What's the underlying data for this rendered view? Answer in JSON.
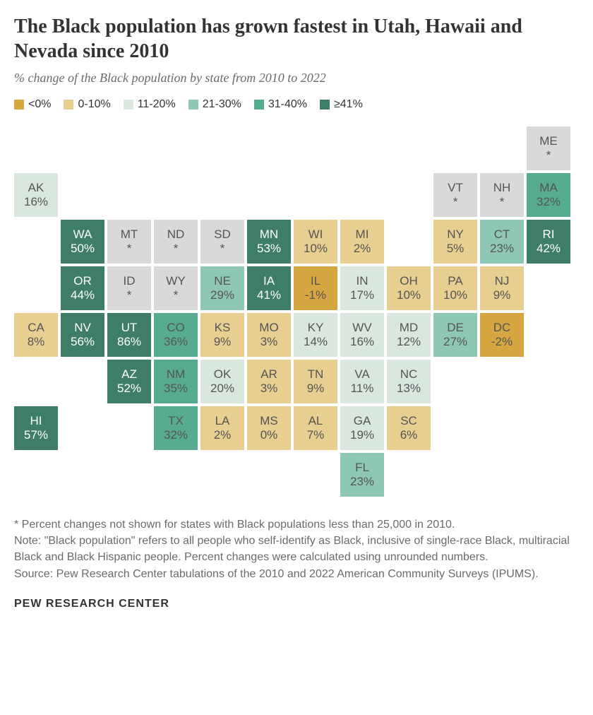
{
  "title": "The Black population has grown fastest in Utah, Hawaii and Nevada since 2010",
  "subtitle": "% change of the Black population by state from 2010 to 2022",
  "colors": {
    "neg": "#d6a740",
    "b0": "#e6cf90",
    "b11": "#d9e7df",
    "b21": "#8fc7b6",
    "b31": "#56ab91",
    "b41": "#3e7e67",
    "na": "#d9d9d9",
    "text": "#555555"
  },
  "legend": [
    {
      "label": "<0%",
      "colorKey": "neg"
    },
    {
      "label": "0-10%",
      "colorKey": "b0"
    },
    {
      "label": "11-20%",
      "colorKey": "b11"
    },
    {
      "label": "21-30%",
      "colorKey": "b21"
    },
    {
      "label": "31-40%",
      "colorKey": "b31"
    },
    {
      "label": "≥41%",
      "colorKey": "b41"
    }
  ],
  "cellFontSize": 17,
  "gridCols": 12,
  "cellSize": 62,
  "cellGap": 4,
  "states": [
    {
      "abbr": "ME",
      "val": "*",
      "row": 1,
      "col": 12,
      "bucket": "na"
    },
    {
      "abbr": "AK",
      "val": "16%",
      "row": 2,
      "col": 1,
      "bucket": "b11"
    },
    {
      "abbr": "VT",
      "val": "*",
      "row": 2,
      "col": 10,
      "bucket": "na"
    },
    {
      "abbr": "NH",
      "val": "*",
      "row": 2,
      "col": 11,
      "bucket": "na"
    },
    {
      "abbr": "MA",
      "val": "32%",
      "row": 2,
      "col": 12,
      "bucket": "b31"
    },
    {
      "abbr": "WA",
      "val": "50%",
      "row": 3,
      "col": 2,
      "bucket": "b41"
    },
    {
      "abbr": "MT",
      "val": "*",
      "row": 3,
      "col": 3,
      "bucket": "na"
    },
    {
      "abbr": "ND",
      "val": "*",
      "row": 3,
      "col": 4,
      "bucket": "na"
    },
    {
      "abbr": "SD",
      "val": "*",
      "row": 3,
      "col": 5,
      "bucket": "na"
    },
    {
      "abbr": "MN",
      "val": "53%",
      "row": 3,
      "col": 6,
      "bucket": "b41"
    },
    {
      "abbr": "WI",
      "val": "10%",
      "row": 3,
      "col": 7,
      "bucket": "b0"
    },
    {
      "abbr": "MI",
      "val": "2%",
      "row": 3,
      "col": 8,
      "bucket": "b0"
    },
    {
      "abbr": "NY",
      "val": "5%",
      "row": 3,
      "col": 10,
      "bucket": "b0"
    },
    {
      "abbr": "CT",
      "val": "23%",
      "row": 3,
      "col": 11,
      "bucket": "b21"
    },
    {
      "abbr": "RI",
      "val": "42%",
      "row": 3,
      "col": 12,
      "bucket": "b41"
    },
    {
      "abbr": "OR",
      "val": "44%",
      "row": 4,
      "col": 2,
      "bucket": "b41"
    },
    {
      "abbr": "ID",
      "val": "*",
      "row": 4,
      "col": 3,
      "bucket": "na"
    },
    {
      "abbr": "WY",
      "val": "*",
      "row": 4,
      "col": 4,
      "bucket": "na"
    },
    {
      "abbr": "NE",
      "val": "29%",
      "row": 4,
      "col": 5,
      "bucket": "b21"
    },
    {
      "abbr": "IA",
      "val": "41%",
      "row": 4,
      "col": 6,
      "bucket": "b41"
    },
    {
      "abbr": "IL",
      "val": "-1%",
      "row": 4,
      "col": 7,
      "bucket": "neg"
    },
    {
      "abbr": "IN",
      "val": "17%",
      "row": 4,
      "col": 8,
      "bucket": "b11"
    },
    {
      "abbr": "OH",
      "val": "10%",
      "row": 4,
      "col": 9,
      "bucket": "b0"
    },
    {
      "abbr": "PA",
      "val": "10%",
      "row": 4,
      "col": 10,
      "bucket": "b0"
    },
    {
      "abbr": "NJ",
      "val": "9%",
      "row": 4,
      "col": 11,
      "bucket": "b0"
    },
    {
      "abbr": "CA",
      "val": "8%",
      "row": 5,
      "col": 1,
      "bucket": "b0"
    },
    {
      "abbr": "NV",
      "val": "56%",
      "row": 5,
      "col": 2,
      "bucket": "b41"
    },
    {
      "abbr": "UT",
      "val": "86%",
      "row": 5,
      "col": 3,
      "bucket": "b41"
    },
    {
      "abbr": "CO",
      "val": "36%",
      "row": 5,
      "col": 4,
      "bucket": "b31"
    },
    {
      "abbr": "KS",
      "val": "9%",
      "row": 5,
      "col": 5,
      "bucket": "b0"
    },
    {
      "abbr": "MO",
      "val": "3%",
      "row": 5,
      "col": 6,
      "bucket": "b0"
    },
    {
      "abbr": "KY",
      "val": "14%",
      "row": 5,
      "col": 7,
      "bucket": "b11"
    },
    {
      "abbr": "WV",
      "val": "16%",
      "row": 5,
      "col": 8,
      "bucket": "b11"
    },
    {
      "abbr": "MD",
      "val": "12%",
      "row": 5,
      "col": 9,
      "bucket": "b11"
    },
    {
      "abbr": "DE",
      "val": "27%",
      "row": 5,
      "col": 10,
      "bucket": "b21"
    },
    {
      "abbr": "DC",
      "val": "-2%",
      "row": 5,
      "col": 11,
      "bucket": "neg"
    },
    {
      "abbr": "AZ",
      "val": "52%",
      "row": 6,
      "col": 3,
      "bucket": "b41"
    },
    {
      "abbr": "NM",
      "val": "35%",
      "row": 6,
      "col": 4,
      "bucket": "b31"
    },
    {
      "abbr": "OK",
      "val": "20%",
      "row": 6,
      "col": 5,
      "bucket": "b11"
    },
    {
      "abbr": "AR",
      "val": "3%",
      "row": 6,
      "col": 6,
      "bucket": "b0"
    },
    {
      "abbr": "TN",
      "val": "9%",
      "row": 6,
      "col": 7,
      "bucket": "b0"
    },
    {
      "abbr": "VA",
      "val": "11%",
      "row": 6,
      "col": 8,
      "bucket": "b11"
    },
    {
      "abbr": "NC",
      "val": "13%",
      "row": 6,
      "col": 9,
      "bucket": "b11"
    },
    {
      "abbr": "HI",
      "val": "57%",
      "row": 7,
      "col": 1,
      "bucket": "b41"
    },
    {
      "abbr": "TX",
      "val": "32%",
      "row": 7,
      "col": 4,
      "bucket": "b31"
    },
    {
      "abbr": "LA",
      "val": "2%",
      "row": 7,
      "col": 5,
      "bucket": "b0"
    },
    {
      "abbr": "MS",
      "val": "0%",
      "row": 7,
      "col": 6,
      "bucket": "b0"
    },
    {
      "abbr": "AL",
      "val": "7%",
      "row": 7,
      "col": 7,
      "bucket": "b0"
    },
    {
      "abbr": "GA",
      "val": "19%",
      "row": 7,
      "col": 8,
      "bucket": "b11"
    },
    {
      "abbr": "SC",
      "val": "6%",
      "row": 7,
      "col": 9,
      "bucket": "b0"
    },
    {
      "abbr": "FL",
      "val": "23%",
      "row": 8,
      "col": 8,
      "bucket": "b21"
    }
  ],
  "note_asterisk": "* Percent changes not shown for states with Black populations less than 25,000 in 2010.",
  "note_definition": "Note: \"Black population\" refers to all people who self-identify as Black, inclusive of single-race Black, multiracial Black and Black Hispanic people. Percent changes were calculated using unrounded numbers.",
  "note_source": "Source: Pew Research Center tabulations of the 2010 and 2022 American Community Surveys (IPUMS).",
  "footer": "PEW RESEARCH CENTER"
}
